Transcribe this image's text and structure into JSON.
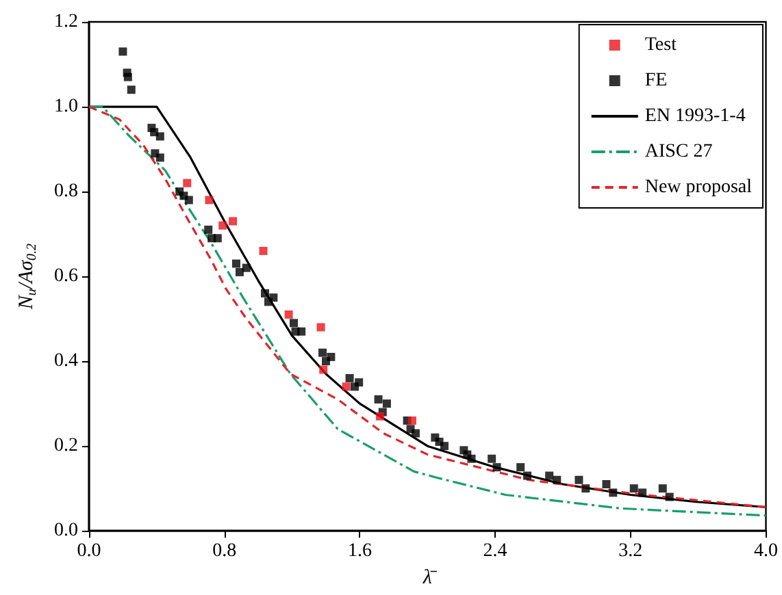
{
  "chart_data": {
    "type": "scatter",
    "xlabel": "λ̄",
    "ylabel": "N$_{u}$/Aσ$_{0.2}$",
    "xlim": [
      0,
      4
    ],
    "ylim": [
      0,
      1.2
    ],
    "xticks": [
      {
        "value": 0,
        "label": "0.0"
      },
      0.8,
      1.6,
      2.4,
      3.2,
      {
        "value": 4,
        "label": "4.0"
      }
    ],
    "yticks": [
      {
        "value": 0,
        "label": "0.0"
      },
      0.2,
      0.4,
      0.6,
      0.8,
      {
        "value": 1,
        "label": "1.0"
      },
      1.2
    ],
    "grid": false,
    "legend": "top right",
    "series": [
      {
        "name": "Test",
        "marker": "square",
        "color": "#e8141c",
        "x": [
          0.58,
          0.71,
          0.79,
          0.85,
          1.03,
          1.18,
          1.37,
          1.385,
          1.52,
          1.72,
          1.91
        ],
        "values": [
          0.82,
          0.78,
          0.72,
          0.73,
          0.66,
          0.51,
          0.48,
          0.38,
          0.34,
          0.27,
          0.26
        ]
      },
      {
        "name": "FE",
        "marker": "square",
        "color": "#000000",
        "x": [
          0.2,
          0.225,
          0.23,
          0.25,
          0.37,
          0.385,
          0.42,
          0.39,
          0.42,
          0.535,
          0.56,
          0.59,
          0.705,
          0.725,
          0.76,
          0.87,
          0.89,
          0.93,
          1.04,
          1.06,
          1.09,
          1.21,
          1.22,
          1.255,
          1.38,
          1.4,
          1.43,
          1.54,
          1.57,
          1.595,
          1.71,
          1.735,
          1.76,
          1.88,
          1.9,
          1.93,
          2.045,
          2.07,
          2.1,
          2.215,
          2.235,
          2.26,
          2.38,
          2.41,
          2.55,
          2.59,
          2.72,
          2.765,
          2.895,
          2.935,
          3.057,
          3.097,
          3.22,
          3.27,
          3.39,
          3.43
        ],
        "values": [
          1.13,
          1.08,
          1.07,
          1.04,
          0.95,
          0.94,
          0.93,
          0.89,
          0.88,
          0.8,
          0.79,
          0.78,
          0.71,
          0.69,
          0.69,
          0.63,
          0.61,
          0.62,
          0.56,
          0.54,
          0.55,
          0.49,
          0.47,
          0.47,
          0.42,
          0.4,
          0.41,
          0.36,
          0.34,
          0.35,
          0.31,
          0.28,
          0.3,
          0.26,
          0.24,
          0.23,
          0.22,
          0.21,
          0.2,
          0.19,
          0.18,
          0.17,
          0.17,
          0.15,
          0.15,
          0.13,
          0.13,
          0.12,
          0.12,
          0.1,
          0.11,
          0.09,
          0.1,
          0.09,
          0.1,
          0.08
        ]
      },
      {
        "name": "EN 1993-1-4",
        "type": "line",
        "line_style": "solid",
        "color": "#000000",
        "x": [
          0,
          0.4,
          0.6,
          0.8,
          1.0,
          1.2,
          1.4,
          1.6,
          2.0,
          2.4,
          2.8,
          3.2,
          3.6,
          4.0
        ],
        "values": [
          1.0,
          1.0,
          0.88,
          0.73,
          0.59,
          0.46,
          0.37,
          0.3,
          0.2,
          0.15,
          0.11,
          0.085,
          0.068,
          0.056
        ]
      },
      {
        "name": "AISC 27",
        "type": "line",
        "line_style": "dashdot",
        "color": "#1a9e6e",
        "x": [
          0,
          0.08,
          0.24,
          0.45,
          0.59,
          0.72,
          0.91,
          1.19,
          1.47,
          1.74,
          1.92,
          2.06,
          2.46,
          3.14,
          4.0
        ],
        "values": [
          1.0,
          1.0,
          0.93,
          0.85,
          0.76,
          0.68,
          0.55,
          0.37,
          0.24,
          0.18,
          0.14,
          0.125,
          0.085,
          0.053,
          0.036
        ]
      },
      {
        "name": "New proposal",
        "type": "line",
        "line_style": "dashed",
        "color": "#e0262b",
        "x": [
          0,
          0.18,
          0.32,
          0.45,
          0.59,
          0.72,
          0.81,
          0.93,
          1.19,
          1.47,
          1.74,
          2.0,
          2.6,
          3.27,
          4.0
        ],
        "values": [
          1.0,
          0.97,
          0.91,
          0.83,
          0.73,
          0.64,
          0.57,
          0.5,
          0.37,
          0.31,
          0.23,
          0.18,
          0.12,
          0.085,
          0.056
        ]
      }
    ]
  }
}
